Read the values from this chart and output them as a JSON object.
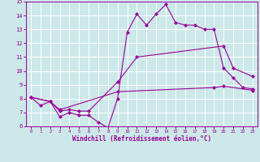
{
  "background_color": "#cce8e8",
  "line_color": "#990099",
  "grid_color": "#ffffff",
  "xlabel": "Windchill (Refroidissement éolien,°C)",
  "xlim": [
    -0.5,
    23.5
  ],
  "ylim": [
    6,
    15
  ],
  "xticks": [
    0,
    1,
    2,
    3,
    4,
    5,
    6,
    7,
    8,
    9,
    10,
    11,
    12,
    13,
    14,
    15,
    16,
    17,
    18,
    19,
    20,
    21,
    22,
    23
  ],
  "yticks": [
    6,
    7,
    8,
    9,
    10,
    11,
    12,
    13,
    14,
    15
  ],
  "line1_x": [
    0,
    1,
    2,
    3,
    4,
    5,
    6,
    7,
    8,
    9,
    10,
    11,
    12,
    13,
    14,
    15,
    16,
    17,
    18,
    19,
    20,
    21,
    22,
    23
  ],
  "line1_y": [
    8.1,
    7.5,
    7.8,
    6.7,
    7.0,
    6.8,
    6.8,
    6.3,
    5.9,
    8.0,
    12.8,
    14.1,
    13.3,
    14.1,
    14.8,
    13.5,
    13.3,
    13.3,
    13.0,
    13.0,
    10.2,
    9.5,
    8.8,
    8.7
  ],
  "line2_x": [
    0,
    2,
    3,
    4,
    5,
    6,
    9,
    11,
    20,
    21,
    23
  ],
  "line2_y": [
    8.1,
    7.8,
    7.1,
    7.2,
    7.1,
    7.1,
    9.2,
    11.0,
    11.8,
    10.2,
    9.6
  ],
  "line3_x": [
    0,
    2,
    3,
    9,
    19,
    20,
    23
  ],
  "line3_y": [
    8.1,
    7.8,
    7.2,
    8.5,
    8.8,
    8.9,
    8.6
  ]
}
